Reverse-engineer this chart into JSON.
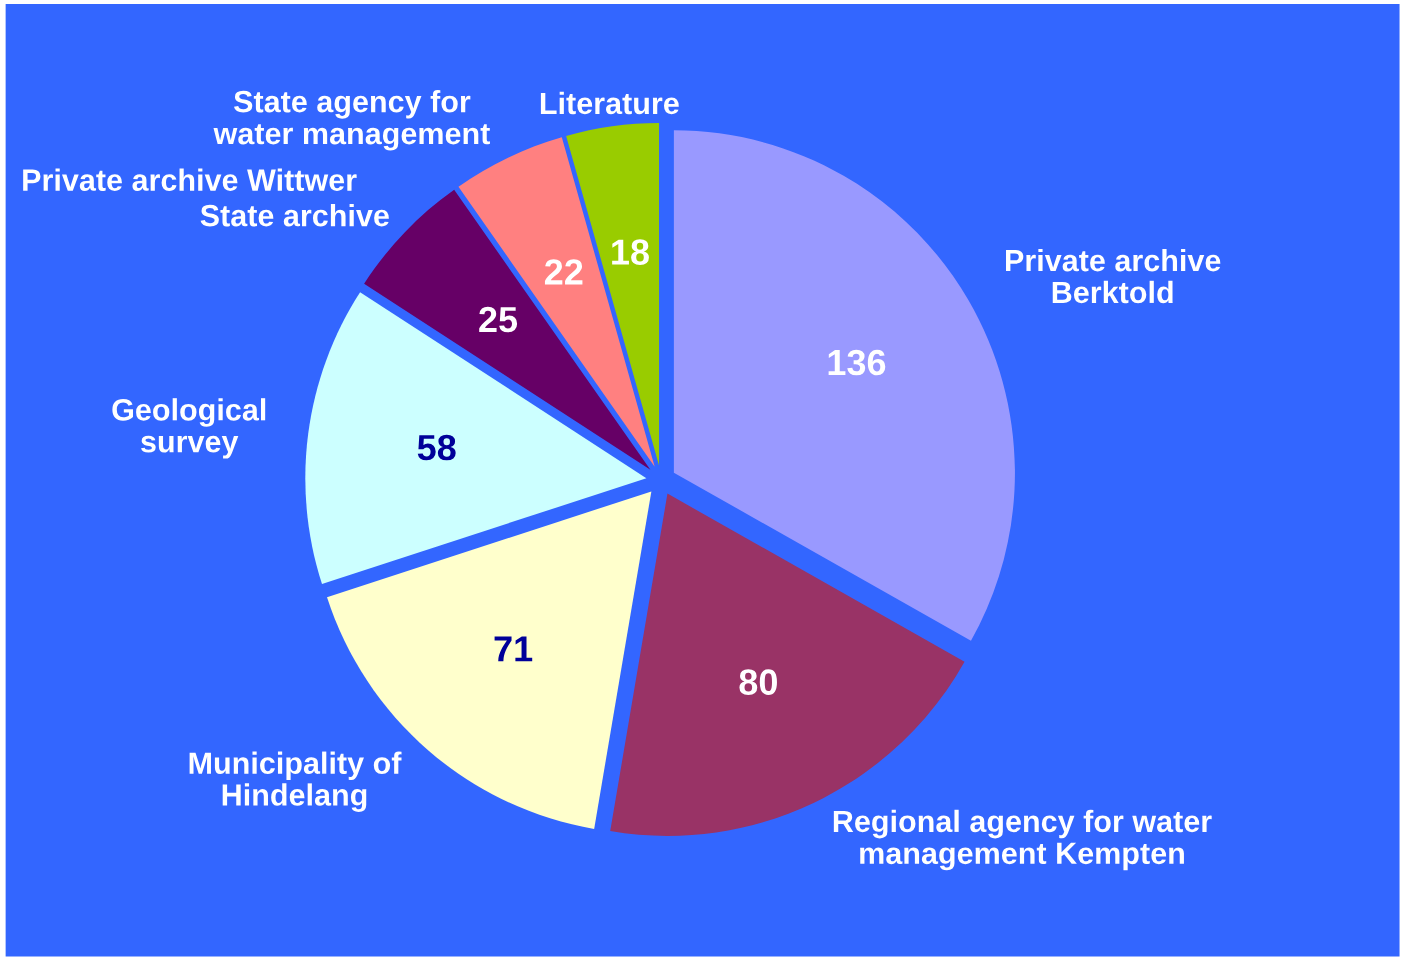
{
  "chart_data": {
    "type": "pie",
    "categories": [
      "Private archive\nBerktold",
      "Regional agency for water\nmanagement Kempten",
      "Municipality of\nHindelang",
      "Geological\nsurvey",
      "State archive",
      "State agency for\nwater management",
      "Literature"
    ],
    "values": [
      136,
      80,
      71,
      58,
      25,
      22,
      18
    ],
    "colors": [
      "#9999ff",
      "#993366",
      "#ffffcc",
      "#ccffff",
      "#660066",
      "#ff8080",
      "#99cc00"
    ],
    "data_labels": true,
    "annotations": [
      "Private archive Wittwer"
    ]
  }
}
